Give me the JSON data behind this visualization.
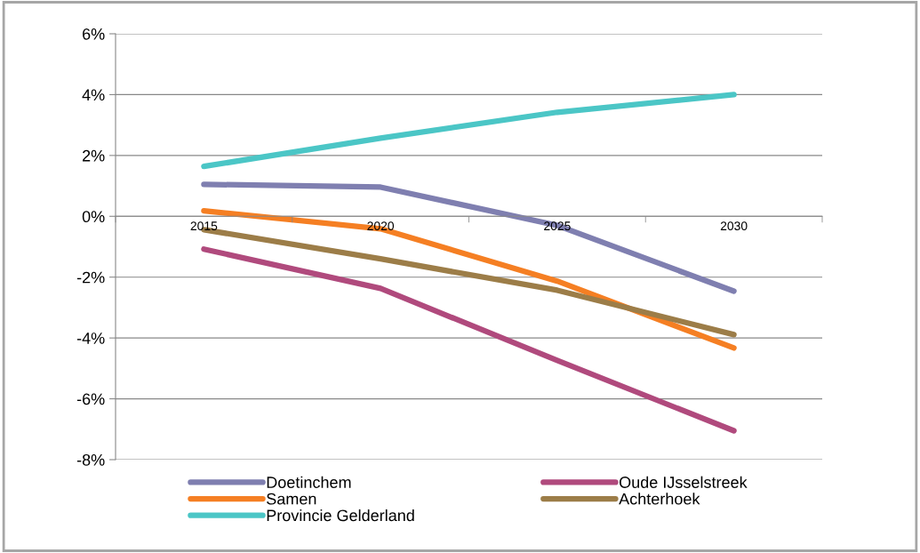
{
  "chart_data": {
    "type": "line",
    "categories": [
      "2015",
      "2020",
      "2025",
      "2030"
    ],
    "series": [
      {
        "name": "Doetinchem",
        "color": "#7f7fb0",
        "values": [
          1.05,
          0.96,
          -0.3,
          -2.46
        ]
      },
      {
        "name": "Oude IJsselstreek",
        "color": "#b04a7d",
        "values": [
          -1.08,
          -2.37,
          -4.74,
          -7.05
        ]
      },
      {
        "name": "Samen",
        "color": "#f57f23",
        "values": [
          0.18,
          -0.41,
          -2.13,
          -4.33
        ]
      },
      {
        "name": "Achterhoek",
        "color": "#9c7d48",
        "values": [
          -0.44,
          -1.4,
          -2.43,
          -3.89
        ]
      },
      {
        "name": "Provincie Gelderland",
        "color": "#4bc6c6",
        "values": [
          1.64,
          2.57,
          3.42,
          4.0
        ]
      }
    ],
    "ylim": [
      -8,
      6
    ],
    "yticks": [
      {
        "value": -8,
        "label": "-8%"
      },
      {
        "value": -6,
        "label": "-6%"
      },
      {
        "value": -4,
        "label": "-4%"
      },
      {
        "value": -2,
        "label": "-2%"
      },
      {
        "value": 0,
        "label": "0%"
      },
      {
        "value": 2,
        "label": "2%"
      },
      {
        "value": 4,
        "label": "4%"
      },
      {
        "value": 6,
        "label": "6%"
      }
    ],
    "grid": "y",
    "legend": "bottom",
    "marker": "none",
    "line_style": "solid"
  }
}
